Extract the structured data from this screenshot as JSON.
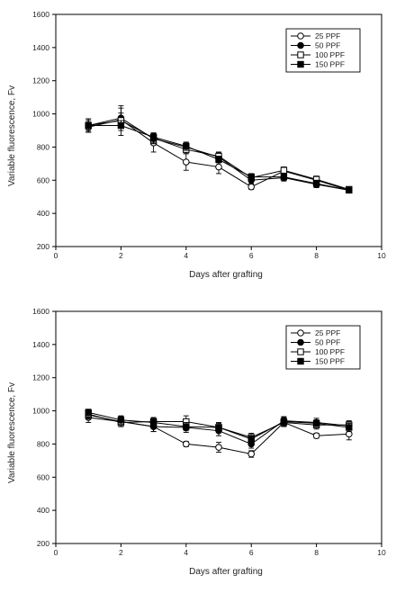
{
  "chart_data": [
    {
      "type": "line",
      "title": "",
      "xlabel": "Days after grafting",
      "ylabel": "Variable fluorescence, Fv",
      "xlim": [
        0,
        10
      ],
      "ylim": [
        200,
        1600
      ],
      "xticks": [
        0,
        2,
        4,
        6,
        8,
        10
      ],
      "yticks": [
        200,
        400,
        600,
        800,
        1000,
        1200,
        1400,
        1600
      ],
      "grid": false,
      "legend_position": "top-right",
      "x": [
        1,
        2,
        3,
        4,
        5,
        6,
        7,
        8,
        9
      ],
      "series": [
        {
          "name": "25 PPF",
          "marker": "open-circle",
          "values": [
            920,
            965,
            825,
            710,
            680,
            560,
            655,
            600,
            540
          ],
          "err": [
            30,
            40,
            55,
            50,
            40,
            15,
            20,
            20,
            15
          ]
        },
        {
          "name": "50 PPF",
          "marker": "filled-circle",
          "values": [
            930,
            975,
            850,
            800,
            740,
            600,
            615,
            575,
            540
          ],
          "err": [
            40,
            60,
            30,
            25,
            25,
            20,
            20,
            20,
            15
          ]
        },
        {
          "name": "100 PPF",
          "marker": "open-square",
          "values": [
            930,
            960,
            855,
            785,
            745,
            615,
            660,
            605,
            545
          ],
          "err": [
            40,
            90,
            30,
            25,
            25,
            20,
            20,
            20,
            15
          ]
        },
        {
          "name": "150 PPF",
          "marker": "filled-square",
          "values": [
            930,
            930,
            860,
            805,
            725,
            620,
            620,
            580,
            540
          ],
          "err": [
            30,
            30,
            25,
            25,
            20,
            20,
            20,
            20,
            15
          ]
        }
      ]
    },
    {
      "type": "line",
      "title": "",
      "xlabel": "Days after grafting",
      "ylabel": "Variable fluorescence, Fv",
      "xlim": [
        0,
        10
      ],
      "ylim": [
        200,
        1600
      ],
      "xticks": [
        0,
        2,
        4,
        6,
        8,
        10
      ],
      "yticks": [
        200,
        400,
        600,
        800,
        1000,
        1200,
        1400,
        1600
      ],
      "grid": false,
      "legend_position": "top-right",
      "x": [
        1,
        2,
        3,
        4,
        5,
        6,
        7,
        8,
        9
      ],
      "series": [
        {
          "name": "25 PPF",
          "marker": "open-circle",
          "values": [
            960,
            935,
            905,
            800,
            780,
            740,
            930,
            850,
            860
          ],
          "err": [
            30,
            30,
            30,
            15,
            30,
            20,
            20,
            15,
            35
          ]
        },
        {
          "name": "50 PPF",
          "marker": "filled-circle",
          "values": [
            975,
            935,
            905,
            900,
            880,
            800,
            940,
            930,
            910
          ],
          "err": [
            25,
            30,
            30,
            30,
            30,
            25,
            25,
            25,
            25
          ]
        },
        {
          "name": "100 PPF",
          "marker": "open-square",
          "values": [
            980,
            930,
            935,
            935,
            900,
            840,
            930,
            915,
            915
          ],
          "err": [
            25,
            25,
            25,
            35,
            30,
            25,
            25,
            25,
            25
          ]
        },
        {
          "name": "150 PPF",
          "marker": "filled-square",
          "values": [
            990,
            945,
            930,
            905,
            900,
            830,
            935,
            925,
            900
          ],
          "err": [
            20,
            25,
            25,
            25,
            25,
            20,
            25,
            20,
            25
          ]
        }
      ]
    }
  ]
}
